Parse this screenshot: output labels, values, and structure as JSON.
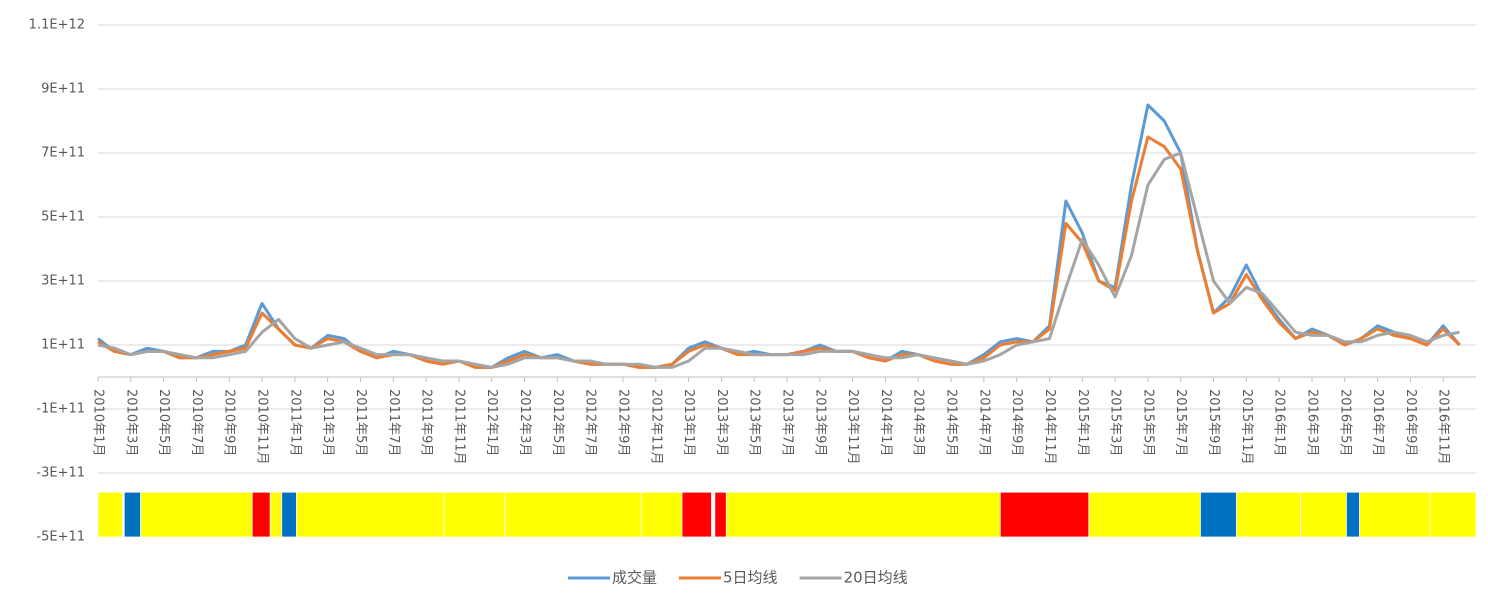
{
  "chart_data": {
    "type": "line",
    "categories": [
      "2010年1月",
      null,
      "2010年3月",
      null,
      "2010年5月",
      null,
      "2010年7月",
      null,
      "2010年9月",
      null,
      "2010年11月",
      null,
      "2011年1月",
      null,
      "2011年3月",
      null,
      "2011年5月",
      null,
      "2011年7月",
      null,
      "2011年9月",
      null,
      "2011年11月",
      null,
      "2012年1月",
      null,
      "2012年3月",
      null,
      "2012年5月",
      null,
      "2012年7月",
      null,
      "2012年9月",
      null,
      "2012年11月",
      null,
      "2013年1月",
      null,
      "2013年3月",
      null,
      "2013年5月",
      null,
      "2013年7月",
      null,
      "2013年9月",
      null,
      "2013年11月",
      null,
      "2014年1月",
      null,
      "2014年3月",
      null,
      "2014年5月",
      null,
      "2014年7月",
      null,
      "2014年9月",
      null,
      "2014年11月",
      null,
      "2015年1月",
      null,
      "2015年3月",
      null,
      "2015年5月",
      null,
      "2015年7月",
      null,
      "2015年9月",
      null,
      "2015年11月",
      null,
      "2016年1月",
      null,
      "2016年3月",
      null,
      "2016年5月",
      null,
      "2016年7月",
      null,
      "2016年9月",
      null,
      "2016年11月",
      null
    ],
    "series": [
      {
        "name": "成交量",
        "color": "#5b9bd5",
        "values": [
          120000000000.0,
          80000000000.0,
          70000000000.0,
          90000000000.0,
          80000000000.0,
          60000000000.0,
          60000000000.0,
          80000000000.0,
          80000000000.0,
          100000000000.0,
          230000000000.0,
          150000000000.0,
          100000000000.0,
          90000000000.0,
          130000000000.0,
          120000000000.0,
          80000000000.0,
          60000000000.0,
          80000000000.0,
          70000000000.0,
          50000000000.0,
          40000000000.0,
          50000000000.0,
          30000000000.0,
          30000000000.0,
          60000000000.0,
          80000000000.0,
          60000000000.0,
          70000000000.0,
          50000000000.0,
          40000000000.0,
          40000000000.0,
          40000000000.0,
          30000000000.0,
          30000000000.0,
          40000000000.0,
          90000000000.0,
          110000000000.0,
          90000000000.0,
          70000000000.0,
          80000000000.0,
          70000000000.0,
          70000000000.0,
          80000000000.0,
          100000000000.0,
          80000000000.0,
          80000000000.0,
          60000000000.0,
          50000000000.0,
          80000000000.0,
          70000000000.0,
          50000000000.0,
          40000000000.0,
          40000000000.0,
          70000000000.0,
          110000000000.0,
          120000000000.0,
          110000000000.0,
          160000000000.0,
          550000000000.0,
          450000000000.0,
          300000000000.0,
          280000000000.0,
          600000000000.0,
          850000000000.0,
          800000000000.0,
          700000000000.0,
          400000000000.0,
          200000000000.0,
          250000000000.0,
          350000000000.0,
          250000000000.0,
          180000000000.0,
          120000000000.0,
          150000000000.0,
          130000000000.0,
          100000000000.0,
          120000000000.0,
          160000000000.0,
          140000000000.0,
          120000000000.0,
          100000000000.0,
          160000000000.0,
          100000000000.0
        ]
      },
      {
        "name": "5日均线",
        "color": "#ed7d31",
        "values": [
          110000000000.0,
          80000000000.0,
          70000000000.0,
          80000000000.0,
          80000000000.0,
          60000000000.0,
          60000000000.0,
          70000000000.0,
          80000000000.0,
          90000000000.0,
          200000000000.0,
          150000000000.0,
          100000000000.0,
          90000000000.0,
          120000000000.0,
          110000000000.0,
          80000000000.0,
          60000000000.0,
          70000000000.0,
          70000000000.0,
          50000000000.0,
          40000000000.0,
          50000000000.0,
          30000000000.0,
          30000000000.0,
          50000000000.0,
          70000000000.0,
          60000000000.0,
          60000000000.0,
          50000000000.0,
          40000000000.0,
          40000000000.0,
          40000000000.0,
          30000000000.0,
          30000000000.0,
          40000000000.0,
          80000000000.0,
          100000000000.0,
          90000000000.0,
          70000000000.0,
          70000000000.0,
          70000000000.0,
          70000000000.0,
          80000000000.0,
          90000000000.0,
          80000000000.0,
          80000000000.0,
          60000000000.0,
          50000000000.0,
          70000000000.0,
          70000000000.0,
          50000000000.0,
          40000000000.0,
          40000000000.0,
          60000000000.0,
          100000000000.0,
          110000000000.0,
          110000000000.0,
          150000000000.0,
          480000000000.0,
          420000000000.0,
          300000000000.0,
          270000000000.0,
          550000000000.0,
          750000000000.0,
          720000000000.0,
          650000000000.0,
          400000000000.0,
          200000000000.0,
          230000000000.0,
          320000000000.0,
          240000000000.0,
          170000000000.0,
          120000000000.0,
          140000000000.0,
          130000000000.0,
          100000000000.0,
          120000000000.0,
          150000000000.0,
          130000000000.0,
          120000000000.0,
          100000000000.0,
          150000000000.0,
          100000000000.0
        ]
      },
      {
        "name": "20日均线",
        "color": "#a5a5a5",
        "values": [
          100000000000.0,
          90000000000.0,
          70000000000.0,
          80000000000.0,
          80000000000.0,
          70000000000.0,
          60000000000.0,
          60000000000.0,
          70000000000.0,
          80000000000.0,
          140000000000.0,
          180000000000.0,
          120000000000.0,
          90000000000.0,
          100000000000.0,
          110000000000.0,
          90000000000.0,
          70000000000.0,
          70000000000.0,
          70000000000.0,
          60000000000.0,
          50000000000.0,
          50000000000.0,
          40000000000.0,
          30000000000.0,
          40000000000.0,
          60000000000.0,
          60000000000.0,
          60000000000.0,
          50000000000.0,
          50000000000.0,
          40000000000.0,
          40000000000.0,
          40000000000.0,
          30000000000.0,
          30000000000.0,
          50000000000.0,
          90000000000.0,
          90000000000.0,
          80000000000.0,
          70000000000.0,
          70000000000.0,
          70000000000.0,
          70000000000.0,
          80000000000.0,
          80000000000.0,
          80000000000.0,
          70000000000.0,
          60000000000.0,
          60000000000.0,
          70000000000.0,
          60000000000.0,
          50000000000.0,
          40000000000.0,
          50000000000.0,
          70000000000.0,
          100000000000.0,
          110000000000.0,
          120000000000.0,
          280000000000.0,
          430000000000.0,
          350000000000.0,
          250000000000.0,
          380000000000.0,
          600000000000.0,
          680000000000.0,
          700000000000.0,
          500000000000.0,
          300000000000.0,
          230000000000.0,
          280000000000.0,
          260000000000.0,
          200000000000.0,
          140000000000.0,
          130000000000.0,
          130000000000.0,
          110000000000.0,
          110000000000.0,
          130000000000.0,
          140000000000.0,
          130000000000.0,
          110000000000.0,
          130000000000.0,
          140000000000.0
        ]
      }
    ],
    "band_range": [
      -500000000000.0,
      -360000000000.0
    ],
    "regimes": [
      {
        "start": 0,
        "end": 1.5,
        "color": "#ffff00"
      },
      {
        "start": 1.6,
        "end": 2.6,
        "color": "#0070c0"
      },
      {
        "start": 2.6,
        "end": 9.4,
        "color": "#ffff00"
      },
      {
        "start": 9.4,
        "end": 10.5,
        "color": "#ff0000"
      },
      {
        "start": 10.5,
        "end": 11.2,
        "color": "#ffff00"
      },
      {
        "start": 11.2,
        "end": 12.1,
        "color": "#0070c0"
      },
      {
        "start": 12.1,
        "end": 21.1,
        "color": "#ffff00"
      },
      {
        "start": 21.1,
        "end": 24.8,
        "color": "#ffff00"
      },
      {
        "start": 24.8,
        "end": 33.1,
        "color": "#ffff00"
      },
      {
        "start": 33.1,
        "end": 35.6,
        "color": "#ffff00"
      },
      {
        "start": 35.6,
        "end": 37.4,
        "color": "#ff0000"
      },
      {
        "start": 37.6,
        "end": 38.3,
        "color": "#ff0000"
      },
      {
        "start": 38.3,
        "end": 55,
        "color": "#ffff00"
      },
      {
        "start": 55,
        "end": 60.4,
        "color": "#ff0000"
      },
      {
        "start": 60.4,
        "end": 67.2,
        "color": "#ffff00"
      },
      {
        "start": 67.2,
        "end": 69.4,
        "color": "#0070c0"
      },
      {
        "start": 69.4,
        "end": 73.3,
        "color": "#ffff00"
      },
      {
        "start": 73.3,
        "end": 76.1,
        "color": "#ffff00"
      },
      {
        "start": 76.1,
        "end": 76.9,
        "color": "#0070c0"
      },
      {
        "start": 76.9,
        "end": 81.2,
        "color": "#ffff00"
      },
      {
        "start": 81.2,
        "end": 84,
        "color": "#ffff00"
      }
    ],
    "ylim": [
      -500000000000.0,
      1100000000000.0
    ],
    "yticks": [
      {
        "value": -500000000000.0,
        "label": "-5E+11"
      },
      {
        "value": -300000000000.0,
        "label": "-3E+11"
      },
      {
        "value": -100000000000.0,
        "label": "-1E+11"
      },
      {
        "value": 100000000000.0,
        "label": "1E+11"
      },
      {
        "value": 300000000000.0,
        "label": "3E+11"
      },
      {
        "value": 500000000000.0,
        "label": "5E+11"
      },
      {
        "value": 700000000000.0,
        "label": "7E+11"
      },
      {
        "value": 900000000000.0,
        "label": "9E+11"
      },
      {
        "value": 1100000000000.0,
        "label": "1.1E+12"
      }
    ],
    "grid": true,
    "legend": "bottom"
  }
}
